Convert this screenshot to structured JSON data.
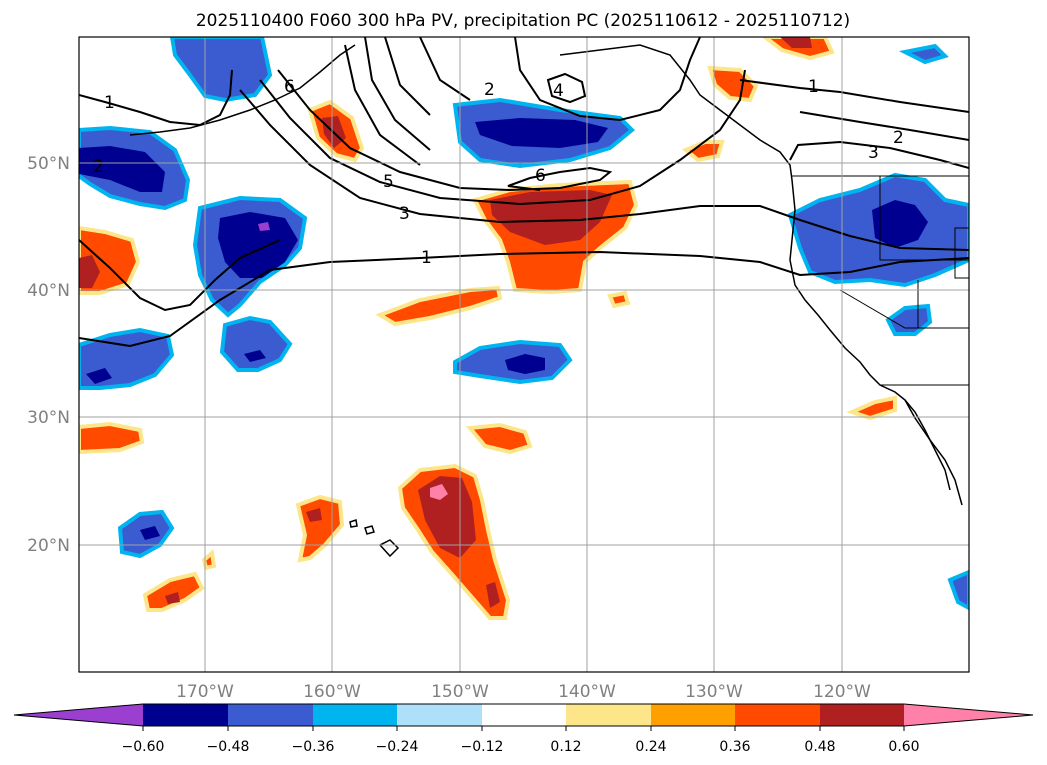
{
  "title": "2025110400 F060 300 hPa PV, precipitation PC (2025110612 - 2025110712)",
  "map": {
    "lon_range": [
      -180,
      -110
    ],
    "lat_range": [
      10,
      60
    ],
    "lon_ticks": [
      "170°W",
      "160°W",
      "150°W",
      "140°W",
      "130°W",
      "120°W"
    ],
    "lat_ticks": [
      "50°N",
      "40°N",
      "30°N",
      "20°N"
    ],
    "grid": true,
    "pv_contour_labels": [
      "1",
      "2",
      "6",
      "4",
      "1",
      "2",
      "3",
      "5",
      "3",
      "6",
      "1",
      "2"
    ]
  },
  "colorbar": {
    "ticks": [
      "−0.60",
      "−0.48",
      "−0.36",
      "−0.24",
      "−0.12",
      "0.12",
      "0.24",
      "0.36",
      "0.48",
      "0.60"
    ],
    "colors": [
      "#9a3fd0",
      "#000090",
      "#3a5cd0",
      "#00b4f0",
      "#aee0fa",
      "#ffffff",
      "#fde68a",
      "#ffa000",
      "#ff4a00",
      "#b02020",
      "#ff80a8"
    ],
    "extend": "both"
  },
  "fill_colors": {
    "neg1": "#3a5cd0",
    "neg2": "#000090",
    "neg3": "#9a3fd0",
    "pos1": "#ff4a00",
    "pos2": "#b02020",
    "pos3": "#ff80a8",
    "edge_neg": "#00b4f0",
    "edge_pos": "#fde68a"
  }
}
